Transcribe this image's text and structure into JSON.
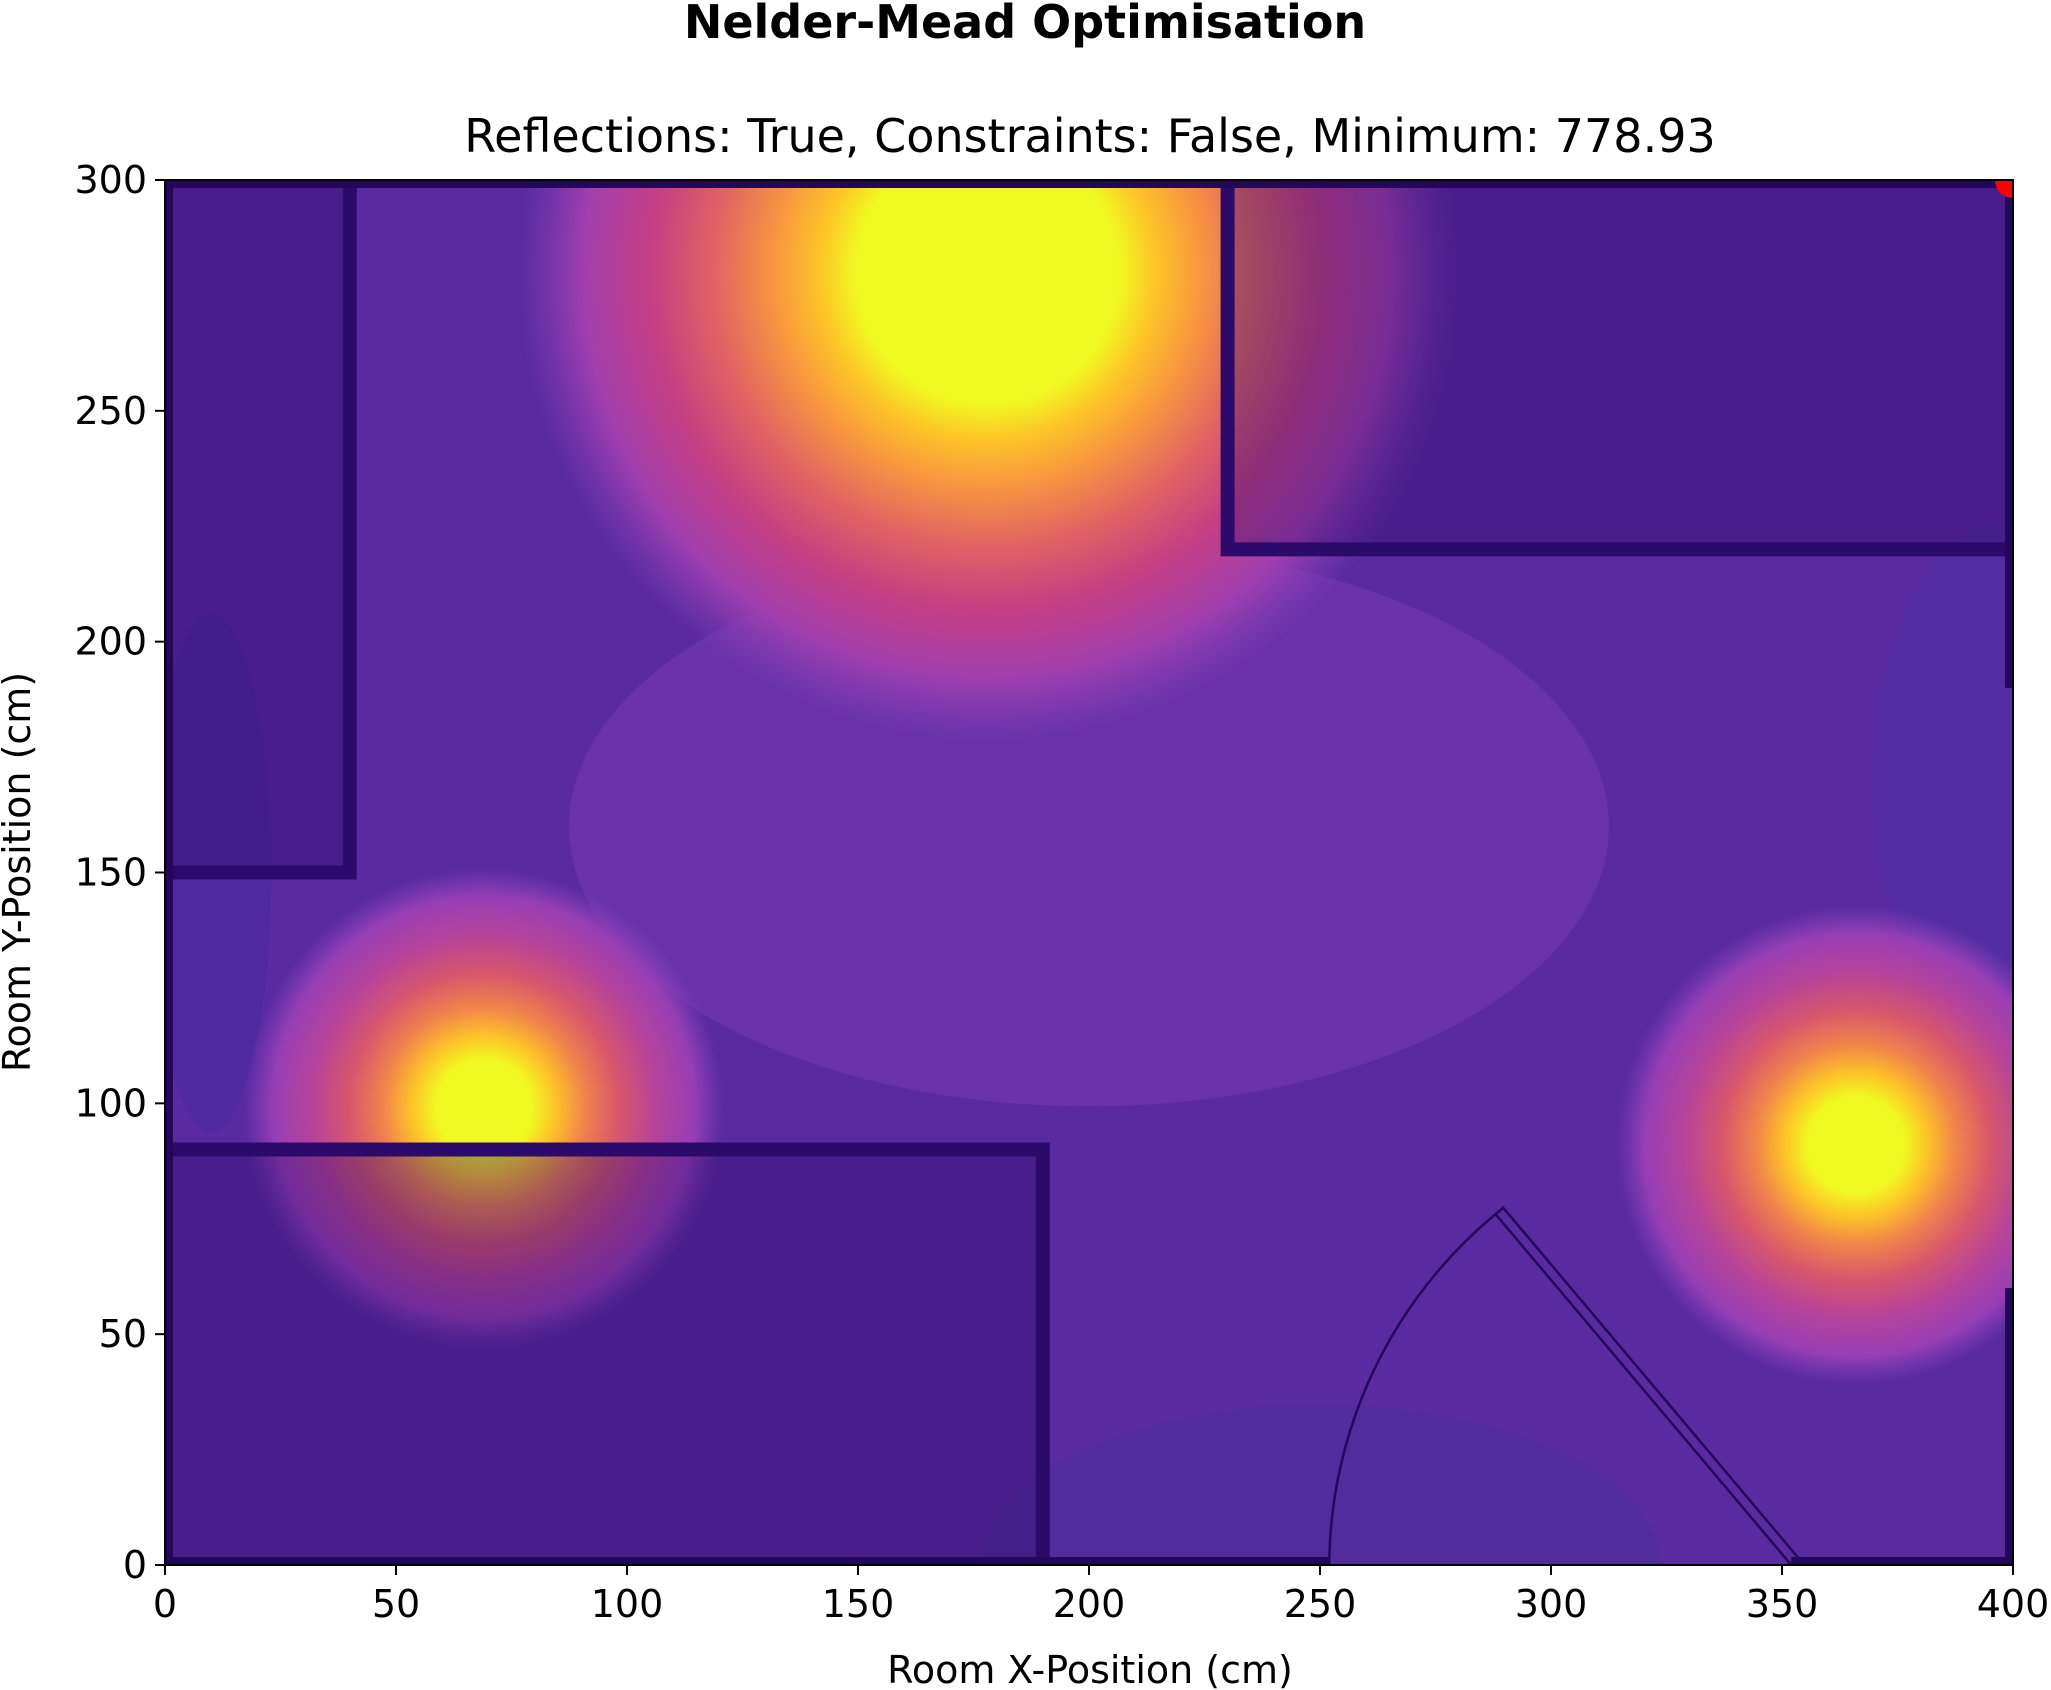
{
  "chart_data": {
    "type": "heatmap",
    "title": "Nelder-Mead Optimisation",
    "subtitle": "Reflections: True, Constraints: False, Minimum: 778.93",
    "xlabel": "Room X-Position (cm)",
    "ylabel": "Room Y-Position (cm)",
    "xlim": [
      0,
      400
    ],
    "ylim": [
      0,
      300
    ],
    "xticks": [
      0,
      50,
      100,
      150,
      200,
      250,
      300,
      350,
      400
    ],
    "yticks": [
      0,
      50,
      100,
      150,
      200,
      250,
      300
    ],
    "grid": false,
    "colormap": "plasma",
    "background_color": "#5a2aa0",
    "light_sources": [
      {
        "x": 178,
        "y": 280
      },
      {
        "x": 69,
        "y": 99
      },
      {
        "x": 366,
        "y": 91
      }
    ],
    "optimum_point": {
      "x": 400,
      "y": 300,
      "color": "#ff0000"
    },
    "furniture": [
      {
        "x0": 0,
        "y0": 150,
        "x1": 40,
        "y1": 300
      },
      {
        "x0": 230,
        "y0": 220,
        "x1": 400,
        "y1": 300
      },
      {
        "x0": 0,
        "y0": 0,
        "x1": 190,
        "y1": 90
      }
    ],
    "door": {
      "hinge_x": 252,
      "hinge_y": 0,
      "leaf_end_x": 288,
      "leaf_end_y": 76,
      "leaf_base_x": 352,
      "leaf_base_y": 0
    },
    "window_opening": {
      "x": 400,
      "y0": 60,
      "y1": 190
    }
  }
}
